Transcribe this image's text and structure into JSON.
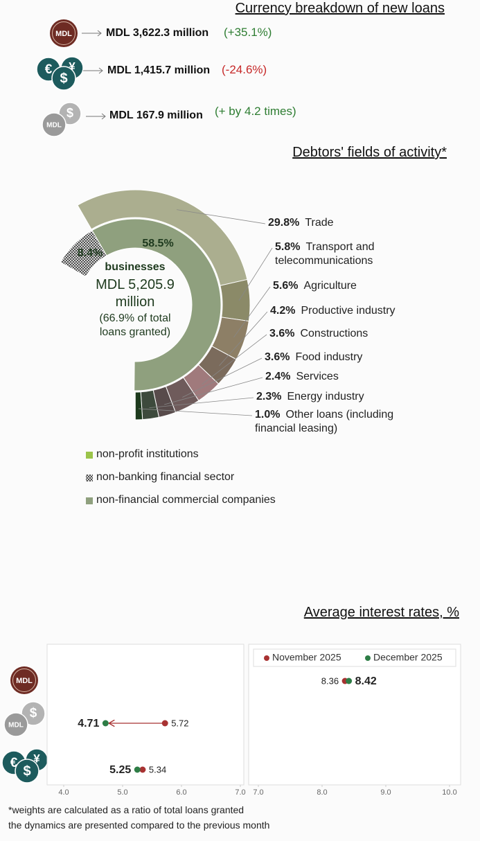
{
  "icons": {
    "mdl": "MDL",
    "euro": "€",
    "dollar": "$",
    "yen": "¥"
  },
  "currency": {
    "title": "Currency breakdown of new loans",
    "items": [
      {
        "amount": "MDL 3,622.3 million",
        "change": "(+35.1%)",
        "color": "#2e7d32"
      },
      {
        "amount": "MDL 1,415.7 million",
        "change": "(-24.6%)",
        "color": "#c62828"
      },
      {
        "amount": "MDL 167.9 million",
        "change": "(+ by 4.2 times)",
        "color": "#2e7d32"
      }
    ]
  },
  "chart_data": [
    {
      "type": "donut",
      "title": "Debtors' fields of activity*",
      "center_labels": [
        "businesses",
        "MDL 5,205.9 million",
        "(66.9% of total loans granted)"
      ],
      "inner": {
        "categories": [
          "non-profit institutions",
          "non-banking financial sector",
          "non-financial commercial companies"
        ],
        "values": [
          null,
          8.4,
          58.5
        ],
        "value_labels": [
          null,
          "8.4%",
          "58.5%"
        ],
        "colors": [
          "#9bc44a",
          "#555555",
          "#8fa07e"
        ],
        "hatch": [
          false,
          true,
          false
        ]
      },
      "outer": {
        "categories": [
          "Trade",
          "Transport and telecommunications",
          "Agriculture",
          "Productive industry",
          "Constructions",
          "Food industry",
          "Services",
          "Energy industry",
          "Other loans (including financial leasing)"
        ],
        "values": [
          29.8,
          5.8,
          5.6,
          4.2,
          3.6,
          3.6,
          2.4,
          2.3,
          1.0
        ],
        "value_labels": [
          "29.8%",
          "5.8%",
          "5.6%",
          "4.2%",
          "3.6%",
          "3.6%",
          "2.4%",
          "2.3%",
          "1.0%"
        ],
        "colors": [
          "#abae8f",
          "#8b8a68",
          "#8d7f66",
          "#7b6b5c",
          "#a07a7c",
          "#6f5b5b",
          "#584b4b",
          "#3d4a3c",
          "#1d3a1d"
        ]
      }
    },
    {
      "type": "dot",
      "title": "Average interest rates, %",
      "panels": [
        {
          "xlim": [
            4,
            7
          ],
          "xticks": [
            {
              "value": 4,
              "label": "4.0"
            },
            {
              "value": 5,
              "label": "5.0"
            },
            {
              "value": 6,
              "label": "6.0"
            },
            {
              "value": 7,
              "label": "7.0"
            }
          ]
        },
        {
          "xlim": [
            7,
            10
          ],
          "xticks": [
            {
              "value": 7,
              "label": "7.0"
            },
            {
              "value": 8,
              "label": "8.0"
            },
            {
              "value": 9,
              "label": "9.0"
            },
            {
              "value": 10,
              "label": "10.0"
            }
          ]
        }
      ],
      "series": [
        {
          "name": "November 2025",
          "color": "#a83232",
          "values": [
            8.36,
            5.72,
            5.34
          ]
        },
        {
          "name": "December 2025",
          "color": "#2e7d46",
          "values": [
            8.42,
            4.71,
            5.25
          ]
        }
      ]
    }
  ],
  "footnote": [
    "*weights are calculated as a ratio of total loans granted",
    "the dynamics are presented compared to the previous month"
  ]
}
